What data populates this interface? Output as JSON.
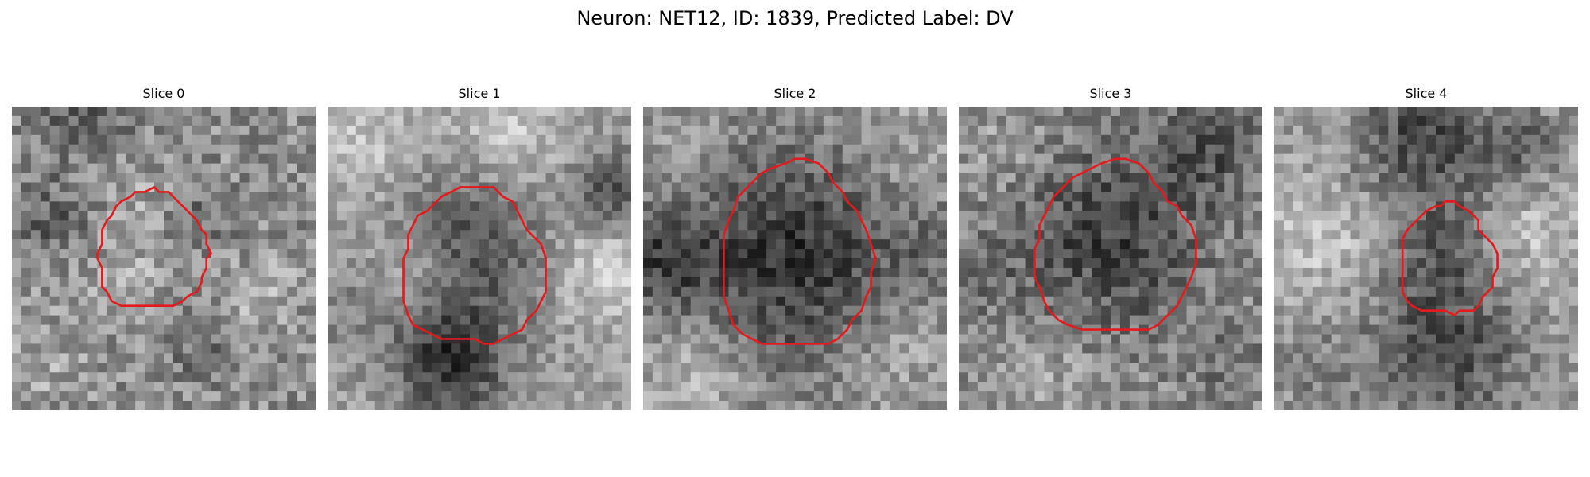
{
  "figure": {
    "title": "Neuron: NET12, ID: 1839, Predicted Label: DV"
  },
  "panels": [
    {
      "title": "Slice 0"
    },
    {
      "title": "Slice 1"
    },
    {
      "title": "Slice 2"
    },
    {
      "title": "Slice 3"
    },
    {
      "title": "Slice 4"
    }
  ],
  "colors": {
    "background": "#ffffff",
    "contour": "#e41a1c"
  }
}
